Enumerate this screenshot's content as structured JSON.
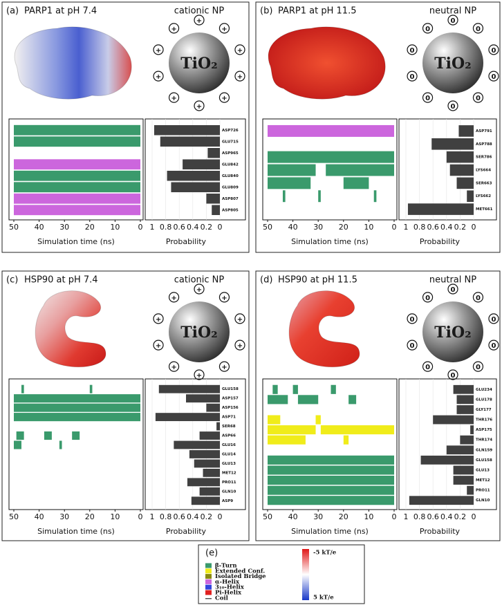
{
  "chart_data": [
    {
      "type": "bar",
      "orientation": "horizontal",
      "panel": "(a)",
      "title": "PARP1 at pH 7.4",
      "np_label": "cationic NP",
      "np_core": "TiO₂",
      "np_charge": "+",
      "categories": [
        "ASP726",
        "GLU715",
        "ASP965",
        "GLU842",
        "GLU840",
        "GLU809",
        "ASP807",
        "ASP805"
      ],
      "values": [
        0.97,
        0.88,
        0.18,
        0.55,
        0.78,
        0.72,
        0.2,
        0.12
      ],
      "color": "#404040",
      "xlim": [
        1,
        0
      ],
      "xticks": [
        1,
        0.8,
        0.6,
        0.4,
        0.2,
        0
      ],
      "xlabel": "Probability",
      "timeline": {
        "xlim": [
          50,
          0
        ],
        "xticks": [
          50,
          40,
          30,
          20,
          10,
          0
        ],
        "xlabel": "Simulation time (ns)",
        "rows": [
          {
            "color": "#3a9a6c",
            "segments": [
              [
                50,
                0
              ]
            ]
          },
          {
            "color": "#3a9a6c",
            "segments": [
              [
                50,
                0
              ]
            ]
          },
          {
            "segments": []
          },
          {
            "color": "#cc66dd",
            "segments": [
              [
                50,
                0
              ]
            ]
          },
          {
            "color": "#3a9a6c",
            "segments": [
              [
                50,
                0
              ]
            ]
          },
          {
            "color": "#3a9a6c",
            "segments": [
              [
                50,
                0
              ]
            ]
          },
          {
            "color": "#cc66dd",
            "segments": [
              [
                50,
                0
              ]
            ]
          },
          {
            "color": "#cc66dd",
            "segments": [
              [
                50,
                0
              ]
            ]
          }
        ]
      }
    },
    {
      "type": "bar",
      "orientation": "horizontal",
      "panel": "(b)",
      "title": "PARP1 at pH 11.5",
      "np_label": "neutral NP",
      "np_core": "TiO₂",
      "np_charge": "0",
      "categories": [
        "ASP791",
        "ASP788",
        "SER786",
        "LYS664",
        "SER663",
        "LYS662",
        "MET661"
      ],
      "values": [
        0.22,
        0.62,
        0.4,
        0.35,
        0.25,
        0.1,
        0.97
      ],
      "color": "#404040",
      "xlim": [
        1,
        0
      ],
      "xticks": [
        1,
        0.8,
        0.6,
        0.4,
        0.2,
        0
      ],
      "xlabel": "Probability",
      "timeline": {
        "xlim": [
          50,
          0
        ],
        "xticks": [
          50,
          40,
          30,
          20,
          10,
          0
        ],
        "xlabel": "Simulation time (ns)",
        "rows": [
          {
            "color": "#cc66dd",
            "segments": [
              [
                50,
                0
              ]
            ]
          },
          {
            "segments": []
          },
          {
            "color": "#3a9a6c",
            "segments": [
              [
                50,
                0
              ]
            ]
          },
          {
            "color": "#3a9a6c",
            "segments": [
              [
                50,
                31
              ],
              [
                27,
                0
              ]
            ]
          },
          {
            "color": "#3a9a6c",
            "segments": [
              [
                50,
                33
              ],
              [
                20,
                10
              ]
            ]
          },
          {
            "color": "#3a9a6c",
            "segments": [
              [
                44,
                43
              ],
              [
                30,
                29
              ],
              [
                8,
                7
              ]
            ]
          },
          {
            "segments": []
          }
        ]
      }
    },
    {
      "type": "bar",
      "orientation": "horizontal",
      "panel": "(c)",
      "title": "HSP90 at pH 7.4",
      "np_label": "cationic NP",
      "np_core": "TiO₂",
      "np_charge": "+",
      "categories": [
        "GLU158",
        "ASP157",
        "ASP156",
        "ASP71",
        "SER68",
        "ASP66",
        "GLU16",
        "GLU14",
        "GLU13",
        "MET12",
        "PRO11",
        "GLN10",
        "ASP9"
      ],
      "values": [
        0.9,
        0.5,
        0.2,
        0.95,
        0.05,
        0.3,
        0.68,
        0.45,
        0.38,
        0.25,
        0.48,
        0.3,
        0.42
      ],
      "color": "#404040",
      "xlim": [
        1,
        0
      ],
      "xticks": [
        1,
        0.8,
        0.6,
        0.4,
        0.2,
        0
      ],
      "xlabel": "Probability",
      "timeline": {
        "xlim": [
          50,
          0
        ],
        "xticks": [
          50,
          40,
          30,
          20,
          10,
          0
        ],
        "xlabel": "Simulation time (ns)",
        "rows": [
          {
            "color": "#3a9a6c",
            "segments": [
              [
                47,
                46
              ],
              [
                20,
                19
              ]
            ]
          },
          {
            "color": "#3a9a6c",
            "segments": [
              [
                50,
                0
              ]
            ]
          },
          {
            "color": "#3a9a6c",
            "segments": [
              [
                50,
                0
              ]
            ]
          },
          {
            "color": "#3a9a6c",
            "segments": [
              [
                50,
                0
              ]
            ]
          },
          {
            "segments": []
          },
          {
            "color": "#3a9a6c",
            "segments": [
              [
                49,
                46
              ],
              [
                38,
                35
              ],
              [
                27,
                24
              ]
            ]
          },
          {
            "color": "#3a9a6c",
            "segments": [
              [
                50,
                47
              ],
              [
                32,
                31
              ]
            ]
          },
          {
            "segments": []
          },
          {
            "segments": []
          },
          {
            "segments": []
          },
          {
            "segments": []
          },
          {
            "segments": []
          },
          {
            "segments": []
          }
        ]
      }
    },
    {
      "type": "bar",
      "orientation": "horizontal",
      "panel": "(d)",
      "title": "HSP90 at pH 11.5",
      "np_label": "neutral NP",
      "np_core": "TiO₂",
      "np_charge": "0",
      "categories": [
        "GLU234",
        "GLU178",
        "GLY177",
        "THR176",
        "ASP175",
        "THR174",
        "GLN159",
        "GLU158",
        "GLU13",
        "MET12",
        "PRO11",
        "GLN10"
      ],
      "values": [
        0.3,
        0.25,
        0.25,
        0.6,
        0.05,
        0.2,
        0.4,
        0.78,
        0.3,
        0.3,
        0.1,
        0.95
      ],
      "color": "#404040",
      "xlim": [
        1,
        0
      ],
      "xticks": [
        1,
        0.8,
        0.6,
        0.4,
        0.2,
        0
      ],
      "xlabel": "Probability",
      "timeline": {
        "xlim": [
          50,
          0
        ],
        "xticks": [
          50,
          40,
          30,
          20,
          10,
          0
        ],
        "xlabel": "Simulation time (ns)",
        "rows": [
          {
            "color": "#3a9a6c",
            "segments": [
              [
                48,
                46
              ],
              [
                40,
                38
              ],
              [
                25,
                23
              ]
            ]
          },
          {
            "color": "#3a9a6c",
            "segments": [
              [
                50,
                42
              ],
              [
                38,
                30
              ],
              [
                18,
                15
              ]
            ]
          },
          {
            "segments": []
          },
          {
            "color": "#f0ec1a",
            "segments": [
              [
                50,
                45
              ],
              [
                31,
                29
              ]
            ]
          },
          {
            "color": "#f0ec1a",
            "segments": [
              [
                50,
                31
              ],
              [
                29,
                0
              ]
            ]
          },
          {
            "color": "#f0ec1a",
            "segments": [
              [
                50,
                35
              ],
              [
                20,
                18
              ]
            ]
          },
          {
            "segments": []
          },
          {
            "color": "#3a9a6c",
            "segments": [
              [
                50,
                0
              ]
            ]
          },
          {
            "color": "#3a9a6c",
            "segments": [
              [
                50,
                0
              ]
            ]
          },
          {
            "color": "#3a9a6c",
            "segments": [
              [
                50,
                0
              ]
            ]
          },
          {
            "color": "#3a9a6c",
            "segments": [
              [
                50,
                0
              ]
            ]
          },
          {
            "color": "#3a9a6c",
            "segments": [
              [
                50,
                0
              ]
            ]
          }
        ]
      }
    }
  ],
  "legend": {
    "label": "(e)",
    "entries": [
      {
        "name": "β-Turn",
        "color": "#3a9a6c"
      },
      {
        "name": "Extended Conf.",
        "color": "#f0ec1a"
      },
      {
        "name": "Isolated Bridge",
        "color": "#8a8a10"
      },
      {
        "name": "α-Helix",
        "color": "#cc66dd"
      },
      {
        "name": "3₁₀-Helix",
        "color": "#3344dd"
      },
      {
        "name": "Pi-Helix",
        "color": "#e02020"
      },
      {
        "name": "Coil",
        "color": "#000000"
      }
    ],
    "colorbar_top": "-5 kT/e",
    "colorbar_bottom": "5 kT/e"
  }
}
